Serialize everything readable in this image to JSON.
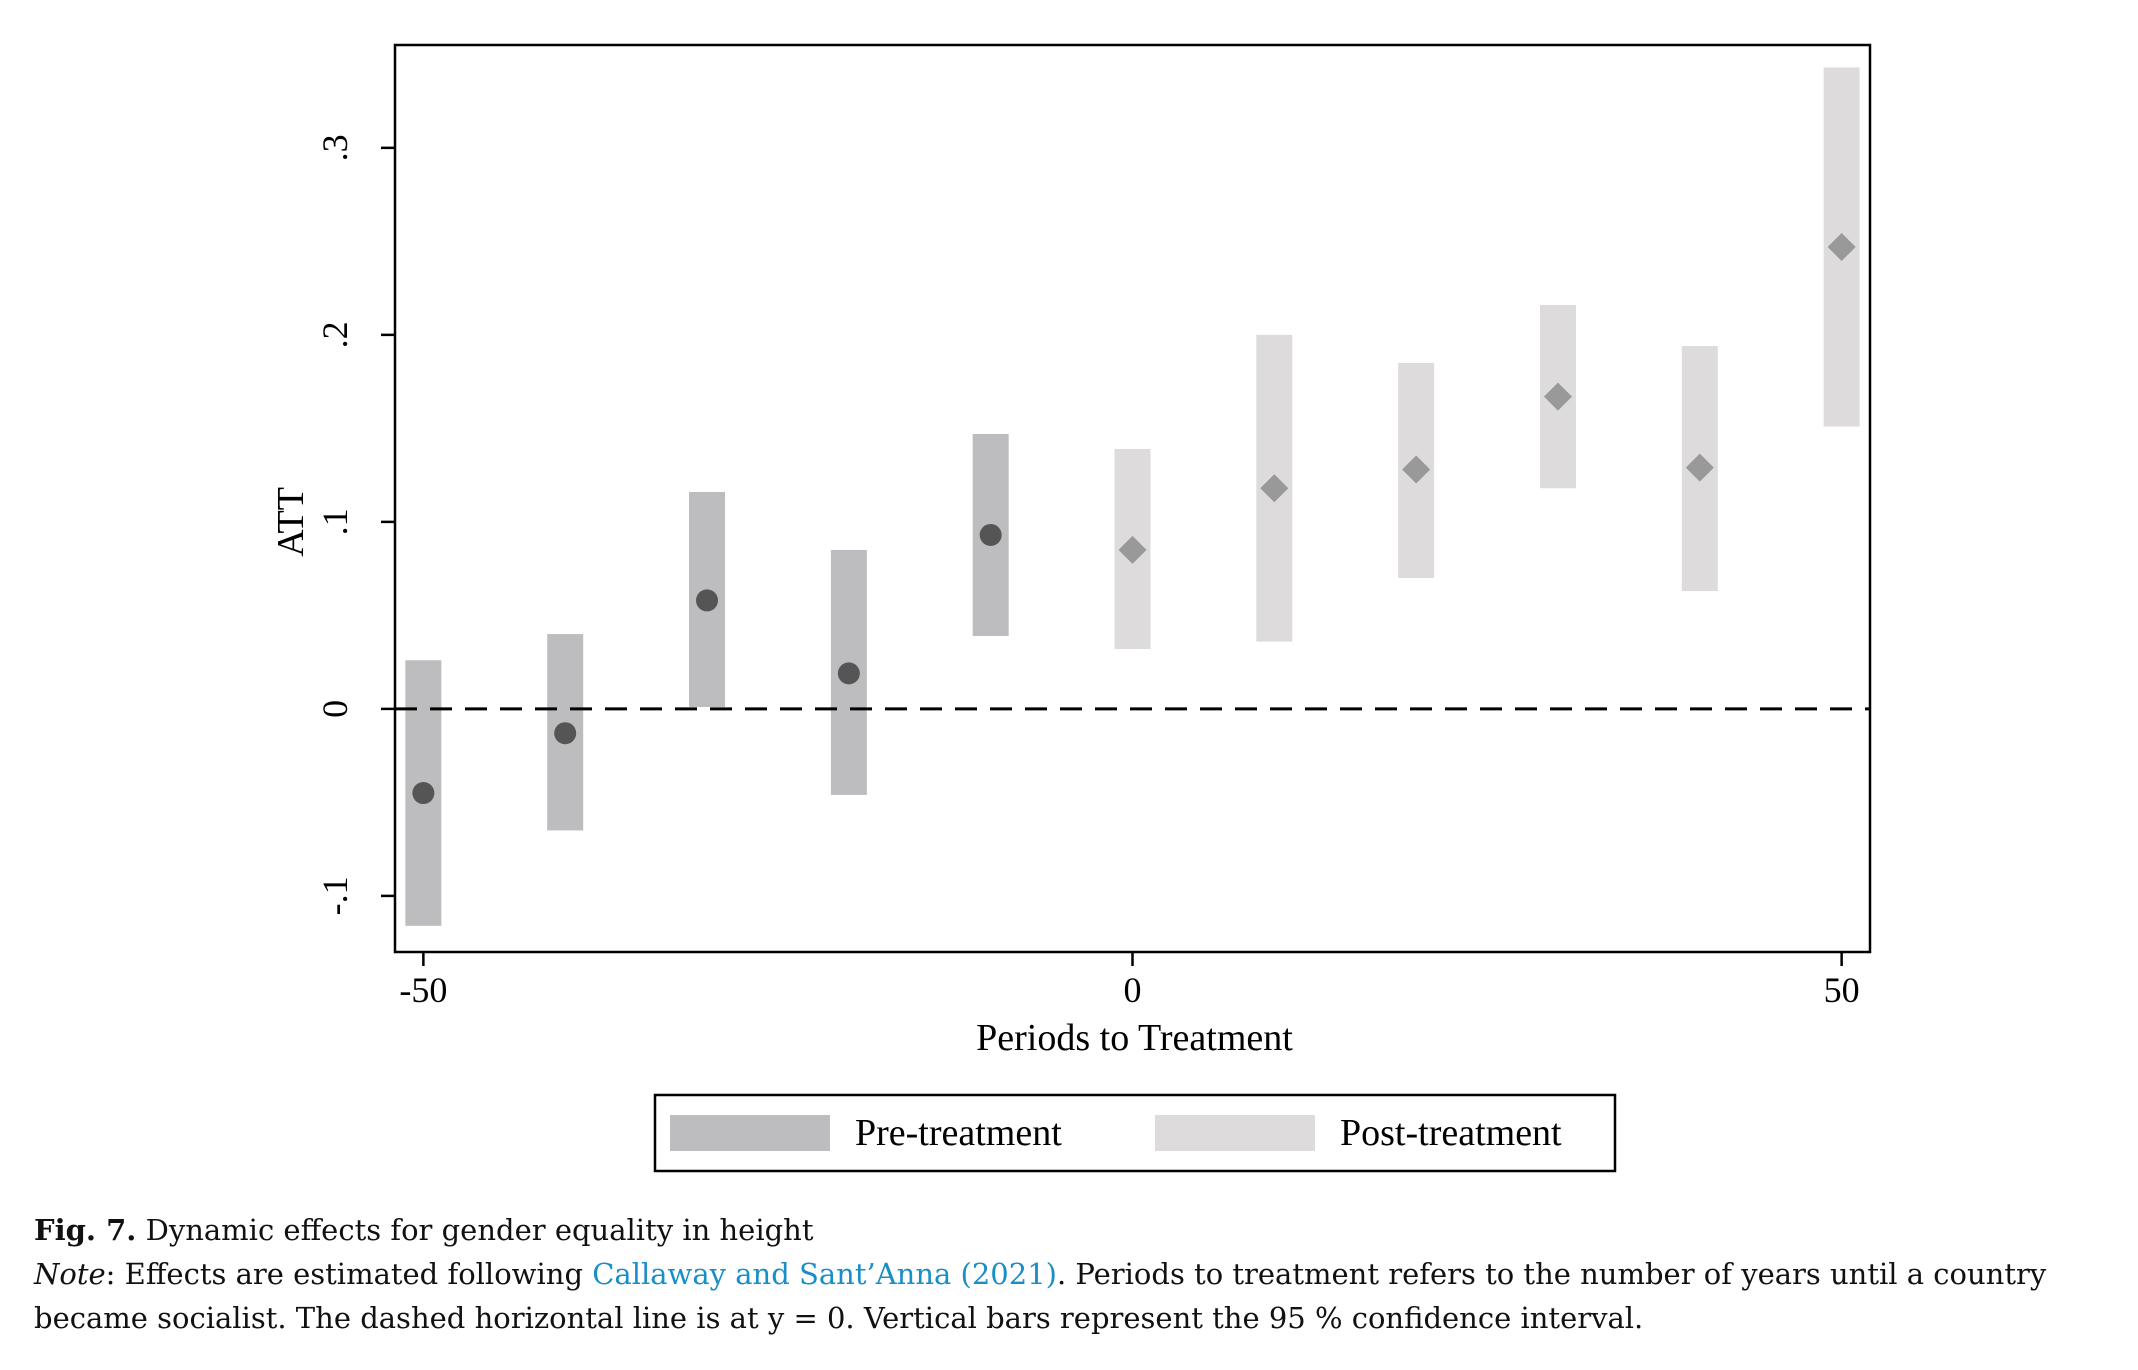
{
  "chart_data": {
    "type": "scatter",
    "xlabel": "Periods to Treatment",
    "ylabel": "ATT",
    "xlim": [
      -52,
      52
    ],
    "ylim": [
      -0.13,
      0.355
    ],
    "xticks": [
      {
        "value": -50,
        "label": "-50"
      },
      {
        "value": 0,
        "label": "0"
      },
      {
        "value": 50,
        "label": "50"
      }
    ],
    "yticks": [
      {
        "value": -0.1,
        "label": "-.1"
      },
      {
        "value": 0,
        "label": "0"
      },
      {
        "value": 0.1,
        "label": ".1"
      },
      {
        "value": 0.2,
        "label": ".2"
      },
      {
        "value": 0.3,
        "label": ".3"
      }
    ],
    "reference_line": {
      "y": 0,
      "style": "dashed"
    },
    "series": [
      {
        "name": "Pre-treatment",
        "marker": "circle",
        "bar_color": "#bdbdbf",
        "marker_color": "#555555",
        "points": [
          {
            "x": -50,
            "y": -0.045,
            "lo": -0.116,
            "hi": 0.026
          },
          {
            "x": -40,
            "y": -0.013,
            "lo": -0.065,
            "hi": 0.04
          },
          {
            "x": -30,
            "y": 0.058,
            "lo": 0.001,
            "hi": 0.116
          },
          {
            "x": -20,
            "y": 0.019,
            "lo": -0.046,
            "hi": 0.085
          },
          {
            "x": -10,
            "y": 0.093,
            "lo": 0.039,
            "hi": 0.147
          }
        ]
      },
      {
        "name": "Post-treatment",
        "marker": "diamond",
        "bar_color": "#dddbdc",
        "marker_color": "#999999",
        "points": [
          {
            "x": 0,
            "y": 0.085,
            "lo": 0.032,
            "hi": 0.139
          },
          {
            "x": 10,
            "y": 0.118,
            "lo": 0.036,
            "hi": 0.2
          },
          {
            "x": 20,
            "y": 0.128,
            "lo": 0.07,
            "hi": 0.185
          },
          {
            "x": 30,
            "y": 0.167,
            "lo": 0.118,
            "hi": 0.216
          },
          {
            "x": 40,
            "y": 0.129,
            "lo": 0.063,
            "hi": 0.194
          },
          {
            "x": 50,
            "y": 0.247,
            "lo": 0.151,
            "hi": 0.343
          }
        ]
      }
    ],
    "legend": {
      "placement": "bottom-center"
    }
  },
  "caption": {
    "fig_label": "Fig. 7.",
    "title": "Dynamic effects for gender equality in height",
    "note_label": "Note",
    "note_pre": ": Effects are estimated following ",
    "citation": "Callaway and Sant’Anna (2021)",
    "note_post": ". Periods to treatment refers to the number of years until a country became socialist. The dashed horizontal line is at y = 0. Vertical bars represent the 95 % confidence interval."
  }
}
